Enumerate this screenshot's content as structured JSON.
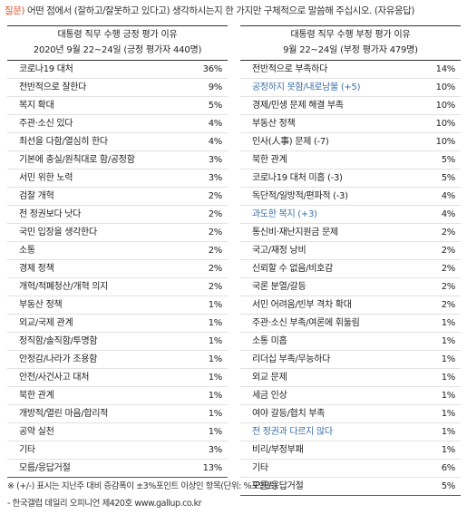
{
  "question": {
    "label": "질문)",
    "text": "어떤 점에서 (잘하고/잘못하고 있다고) 생각하시는지 한 가지만 구체적으로 말씀해 주십시오. (자유응답)"
  },
  "positive": {
    "title": "대통령 직무 수행 긍정 평가 이유",
    "subtitle": "2020년 9월 22~24일 (긍정 평가자 440명)",
    "rows": [
      {
        "label": "코로나19 대처",
        "value": "36%"
      },
      {
        "label": "전반적으로 잘한다",
        "value": "9%"
      },
      {
        "label": "복지 확대",
        "value": "5%"
      },
      {
        "label": "주관·소신 있다",
        "value": "4%"
      },
      {
        "label": "최선을 다함/열심히 한다",
        "value": "4%"
      },
      {
        "label": "기본에 충실/원칙대로 함/공정함",
        "value": "3%"
      },
      {
        "label": "서민 위한 노력",
        "value": "3%"
      },
      {
        "label": "검찰 개혁",
        "value": "2%"
      },
      {
        "label": "전 정권보다 낫다",
        "value": "2%"
      },
      {
        "label": "국민 입장을 생각한다",
        "value": "2%"
      },
      {
        "label": "소통",
        "value": "2%"
      },
      {
        "label": "경제 정책",
        "value": "2%"
      },
      {
        "label": "개혁/적폐청산/개혁 의지",
        "value": "2%"
      },
      {
        "label": "부동산 정책",
        "value": "1%"
      },
      {
        "label": "외교/국제 관계",
        "value": "1%"
      },
      {
        "label": "정직함/솔직함/투명함",
        "value": "1%"
      },
      {
        "label": "안정감/나라가 조용함",
        "value": "1%"
      },
      {
        "label": "안전/사건사고 대처",
        "value": "1%"
      },
      {
        "label": "북한 관계",
        "value": "1%"
      },
      {
        "label": "개방적/열린 마음/합리적",
        "value": "1%"
      },
      {
        "label": "공약 실천",
        "value": "1%"
      },
      {
        "label": "기타",
        "value": "3%"
      },
      {
        "label": "모름/응답거절",
        "value": "13%"
      }
    ]
  },
  "negative": {
    "title": "대통령 직무 수행 부정 평가 이유",
    "subtitle": "9월 22~24일 (부정 평가자 479명)",
    "rows": [
      {
        "label": "전반적으로 부족하다",
        "value": "14%",
        "highlight": false
      },
      {
        "label": "공정하지 못함/내로남불 (+5)",
        "value": "10%",
        "highlight": true
      },
      {
        "label": "경제/민생 문제 해결 부족",
        "value": "10%",
        "highlight": false
      },
      {
        "label": "부동산 정책",
        "value": "10%",
        "highlight": false
      },
      {
        "label": "인사(人事) 문제 (-7)",
        "value": "10%",
        "highlight": false
      },
      {
        "label": "북한 관계",
        "value": "5%",
        "highlight": false
      },
      {
        "label": "코로나19 대처 미흡 (-3)",
        "value": "5%",
        "highlight": false
      },
      {
        "label": "독단적/일방적/편파적 (-3)",
        "value": "4%",
        "highlight": false
      },
      {
        "label": "과도한 복지 (+3)",
        "value": "4%",
        "highlight": true
      },
      {
        "label": "통신비·재난지원금 문제",
        "value": "2%",
        "highlight": false
      },
      {
        "label": "국고/재정 낭비",
        "value": "2%",
        "highlight": false
      },
      {
        "label": "신뢰할 수 없음/비호감",
        "value": "2%",
        "highlight": false
      },
      {
        "label": "국론 분열/갈등",
        "value": "2%",
        "highlight": false
      },
      {
        "label": "서민 어려움/빈부 격차 확대",
        "value": "2%",
        "highlight": false
      },
      {
        "label": "주관·소신 부족/여론에 휘둘림",
        "value": "1%",
        "highlight": false
      },
      {
        "label": "소통 미흡",
        "value": "1%",
        "highlight": false
      },
      {
        "label": "리더십 부족/무능하다",
        "value": "1%",
        "highlight": false
      },
      {
        "label": "외교 문제",
        "value": "1%",
        "highlight": false
      },
      {
        "label": "세금 인상",
        "value": "1%",
        "highlight": false
      },
      {
        "label": "여야 갈등/협치 부족",
        "value": "1%",
        "highlight": false
      },
      {
        "label": "전 정권과 다르지 않다",
        "value": "1%",
        "highlight": true
      },
      {
        "label": "비리/부정부패",
        "value": "1%",
        "highlight": false
      },
      {
        "label": "기타",
        "value": "6%",
        "highlight": false
      },
      {
        "label": "모름/응답거절",
        "value": "5%",
        "highlight": false
      }
    ]
  },
  "footnotes": [
    "※ (+/-) 표시는 지난주 대비 증감폭이 ±3%포인트 이상인 항목(단위: %포인트)",
    "- 한국갤럽 데일리 오피니언 제420호 www.gallup.co.kr"
  ],
  "colors": {
    "question_label": "#e2502d",
    "highlight_text": "#3a6ea8"
  }
}
